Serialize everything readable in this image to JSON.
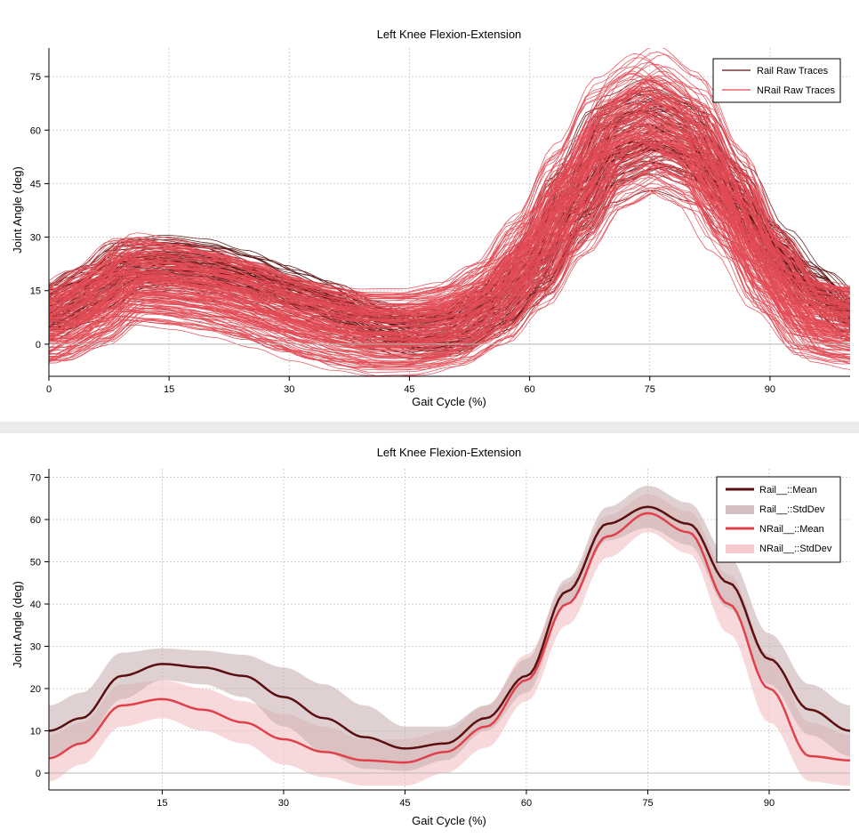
{
  "chart_data": [
    {
      "type": "line",
      "title": "Left Knee Flexion-Extension",
      "xlabel": "Gait Cycle (%)",
      "ylabel": "Joint Angle (deg)",
      "xlim": [
        0,
        100
      ],
      "ylim": [
        -9,
        83
      ],
      "xticks": [
        "0",
        "15",
        "30",
        "45",
        "60",
        "75",
        "90"
      ],
      "yticks": [
        "0",
        "15",
        "30",
        "45",
        "60",
        "75"
      ],
      "grid": true,
      "legend_position": "top-right",
      "legend": [
        "Rail Raw Traces",
        "NRail Raw Traces"
      ],
      "series": [
        {
          "name": "Rail Raw Traces",
          "color": "#5a0f10",
          "spread_low": 8,
          "spread_high": 4,
          "x": [
            0,
            5,
            10,
            15,
            20,
            25,
            30,
            35,
            40,
            45,
            50,
            55,
            60,
            65,
            70,
            75,
            80,
            85,
            90,
            95,
            100
          ],
          "y": [
            11,
            17,
            24,
            25,
            24,
            21,
            17,
            13,
            8,
            5,
            6,
            12,
            23,
            42,
            59,
            63,
            59,
            45,
            29,
            18,
            10
          ]
        },
        {
          "name": "NRail Raw Traces",
          "color": "#e24b55",
          "spread_low": 10,
          "spread_high": 12,
          "x": [
            0,
            5,
            10,
            15,
            20,
            25,
            30,
            35,
            40,
            45,
            50,
            55,
            60,
            65,
            70,
            75,
            80,
            85,
            90,
            95,
            100
          ],
          "y": [
            4,
            9,
            17,
            16,
            14,
            11,
            7,
            4,
            2,
            2,
            4,
            10,
            22,
            39,
            55,
            61,
            55,
            38,
            19,
            6,
            4
          ]
        }
      ]
    },
    {
      "type": "line",
      "title": "Left Knee Flexion-Extension",
      "xlabel": "Gait Cycle (%)",
      "ylabel": "Joint Angle (deg)",
      "xlim": [
        1,
        100
      ],
      "ylim": [
        -4,
        72
      ],
      "xticks": [
        "15",
        "30",
        "45",
        "60",
        "75",
        "90"
      ],
      "yticks": [
        "0",
        "10",
        "20",
        "30",
        "40",
        "50",
        "60",
        "70"
      ],
      "grid": true,
      "legend_position": "top-right",
      "legend": [
        "Rail__::Mean",
        "Rail__::StdDev",
        "NRail__::Mean",
        "NRail__::StdDev"
      ],
      "series": [
        {
          "name": "Rail__::Mean",
          "color": "#5a0f10",
          "x": [
            1,
            5,
            10,
            15,
            20,
            25,
            30,
            35,
            40,
            45,
            50,
            55,
            60,
            65,
            70,
            75,
            80,
            85,
            90,
            95,
            100
          ],
          "y": [
            10,
            13,
            23,
            25.8,
            25,
            23,
            18,
            13,
            8.5,
            5.8,
            7,
            13,
            23,
            43,
            59,
            63,
            59,
            45,
            27,
            15,
            10
          ]
        },
        {
          "name": "Rail__::StdDev",
          "color": "#c9b0b2",
          "x": [
            1,
            5,
            10,
            15,
            20,
            25,
            30,
            35,
            40,
            45,
            50,
            55,
            60,
            65,
            70,
            75,
            80,
            85,
            90,
            95,
            100
          ],
          "upper": [
            16,
            19,
            28.5,
            29.5,
            29,
            28,
            25,
            21,
            16,
            11,
            11,
            16,
            27,
            46,
            63,
            68,
            64,
            51,
            33,
            21,
            16
          ],
          "lower": [
            4,
            7,
            17.5,
            22,
            21,
            18,
            11,
            5,
            1,
            0.5,
            3,
            10,
            19,
            40,
            55,
            58,
            54,
            39,
            21,
            9,
            4
          ]
        },
        {
          "name": "NRail__::Mean",
          "color": "#e0404a",
          "x": [
            1,
            5,
            10,
            15,
            20,
            25,
            30,
            35,
            40,
            45,
            50,
            55,
            60,
            65,
            70,
            75,
            80,
            85,
            90,
            95,
            100
          ],
          "y": [
            3.5,
            7,
            16,
            17.5,
            15,
            12,
            8,
            5,
            3,
            2.5,
            5,
            11,
            22,
            40,
            56,
            61.5,
            57,
            40,
            20,
            4,
            3
          ]
        },
        {
          "name": "NRail__::StdDev",
          "color": "#f5c4c7",
          "x": [
            1,
            5,
            10,
            15,
            20,
            25,
            30,
            35,
            40,
            45,
            50,
            55,
            60,
            65,
            70,
            75,
            80,
            85,
            90,
            95,
            100
          ],
          "upper": [
            9,
            12,
            21,
            22,
            20,
            17,
            14,
            11,
            8,
            8,
            10,
            16,
            28,
            45,
            61,
            66,
            62,
            47,
            28,
            12,
            9
          ],
          "lower": [
            -2,
            2,
            11,
            13,
            10,
            7,
            2,
            -1,
            -3,
            -3,
            0,
            6,
            17,
            35,
            51,
            57,
            52,
            33,
            12,
            -2,
            -3
          ]
        }
      ]
    }
  ]
}
